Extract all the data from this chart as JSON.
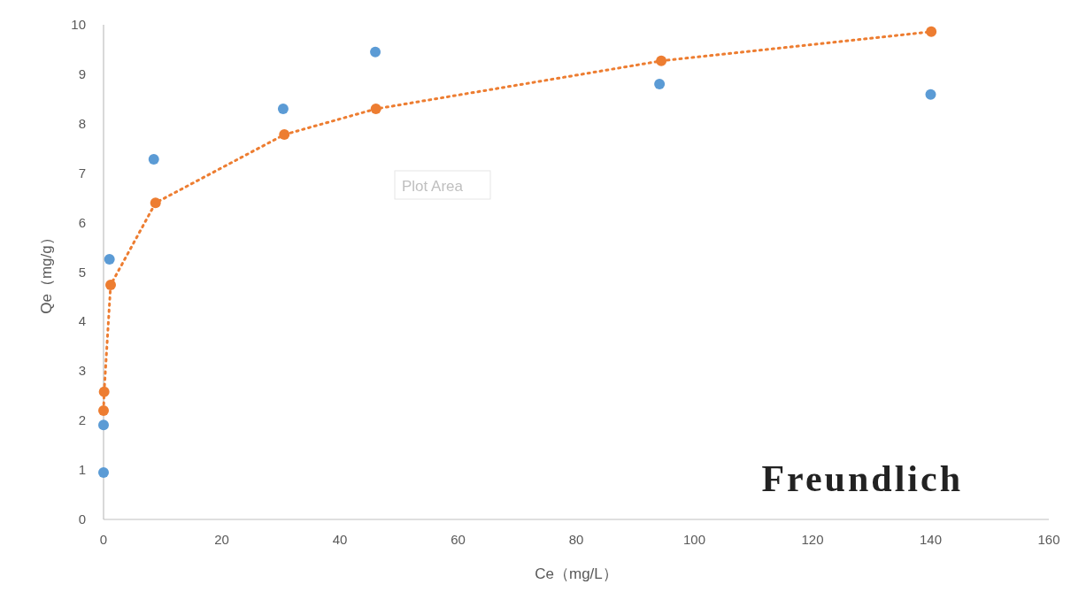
{
  "chart_data": {
    "type": "scatter",
    "xlabel": "Ce（mg/L）",
    "ylabel": "Qe（mg/g）",
    "xlim": [
      0,
      160
    ],
    "xticks": [
      0,
      20,
      40,
      60,
      80,
      100,
      120,
      140,
      160
    ],
    "ylim": [
      0,
      10
    ],
    "yticks": [
      0,
      1,
      2,
      3,
      4,
      5,
      6,
      7,
      8,
      9,
      10
    ],
    "grid": false,
    "marker": "circle",
    "series": [
      {
        "type": "scatter",
        "color": "#5b9bd5",
        "x": [
          0,
          0,
          1.0,
          8.5,
          30.4,
          46,
          94.1,
          140
        ],
        "values": [
          0.95,
          1.91,
          5.26,
          7.28,
          8.3,
          9.45,
          8.8,
          8.59
        ]
      },
      {
        "type": "line",
        "line_style": "dotted",
        "color": "#ed7d31",
        "x": [
          0,
          0.1,
          1.2,
          8.8,
          30.6,
          46.1,
          94.4,
          140.1
        ],
        "values": [
          2.2,
          2.58,
          4.74,
          6.4,
          7.78,
          8.3,
          9.27,
          9.86
        ]
      }
    ],
    "annotations": [
      "Plot Area",
      "Freundlich"
    ]
  }
}
